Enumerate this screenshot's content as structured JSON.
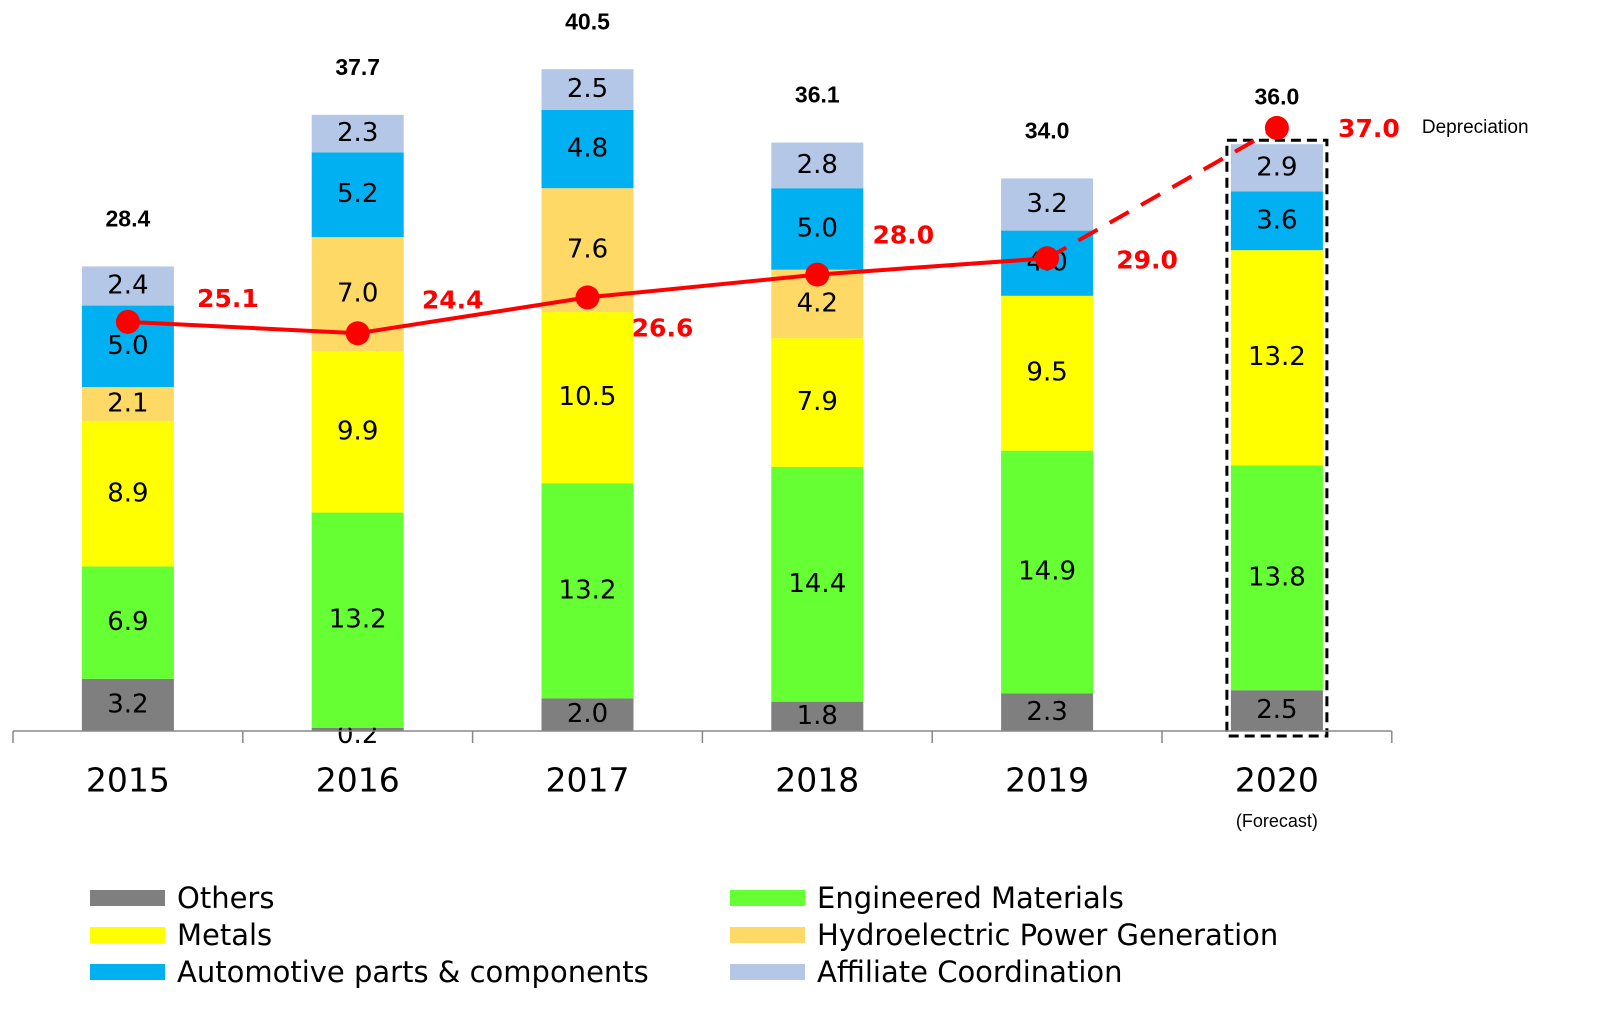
{
  "chart_data": {
    "type": "stacked_bar_line",
    "categories": [
      "2015",
      "2016",
      "2017",
      "2018",
      "2019",
      "2020"
    ],
    "category_notes": [
      null,
      null,
      null,
      null,
      null,
      "(Forecast)"
    ],
    "forecast": [
      false,
      false,
      false,
      false,
      false,
      true
    ],
    "ylim": [
      0,
      45
    ],
    "series": [
      {
        "name": "Others",
        "color": "#7f7f7f",
        "values": [
          3.2,
          0.2,
          2.0,
          1.8,
          2.3,
          2.5
        ],
        "value_labels": [
          "3.2",
          "0.2",
          "2.0",
          "1.8",
          "2.3",
          "2.5"
        ]
      },
      {
        "name": "Engineered Materials",
        "color": "#66ff33",
        "values": [
          6.9,
          13.2,
          13.2,
          14.4,
          14.9,
          13.8
        ],
        "value_labels": [
          "6.9",
          "13.2",
          "13.2",
          "14.4",
          "14.9",
          "13.8"
        ]
      },
      {
        "name": "Metals",
        "color": "#ffff00",
        "values": [
          8.9,
          9.9,
          10.5,
          7.9,
          9.5,
          13.2
        ],
        "value_labels": [
          "8.9",
          "9.9",
          "10.5",
          "7.9",
          "9.5",
          "13.2"
        ]
      },
      {
        "name": "Hydroelectric Power Generation",
        "color": "#ffd966",
        "values": [
          2.1,
          7.0,
          7.6,
          4.2,
          null,
          null
        ],
        "value_labels": [
          "2.1",
          "7.0",
          "7.6",
          "4.2",
          null,
          null
        ]
      },
      {
        "name": "Automotive parts & components",
        "color": "#00b0f0",
        "values": [
          5.0,
          5.2,
          4.8,
          5.0,
          4.0,
          3.6
        ],
        "value_labels": [
          "5.0",
          "5.2",
          "4.8",
          "5.0",
          "4.0",
          "3.6"
        ]
      },
      {
        "name": "Affiliate Coordination",
        "color": "#b4c7e7",
        "values": [
          2.4,
          2.3,
          2.5,
          2.8,
          3.2,
          2.9
        ],
        "value_labels": [
          "2.4",
          "2.3",
          "2.5",
          "2.8",
          "3.2",
          "2.9"
        ]
      }
    ],
    "totals": [
      28.4,
      37.7,
      40.5,
      36.1,
      34.0,
      36.0
    ],
    "totals_labels": [
      "28.4",
      "37.7",
      "40.5",
      "36.1",
      "34.0",
      "36.0"
    ],
    "line": {
      "name": "Depreciation",
      "color": "#ff0000",
      "values": [
        25.1,
        24.4,
        26.6,
        28.0,
        29.0,
        37.0
      ],
      "value_labels": [
        "25.1",
        "24.4",
        "26.6",
        "28.0",
        "29.0",
        "37.0"
      ]
    }
  }
}
